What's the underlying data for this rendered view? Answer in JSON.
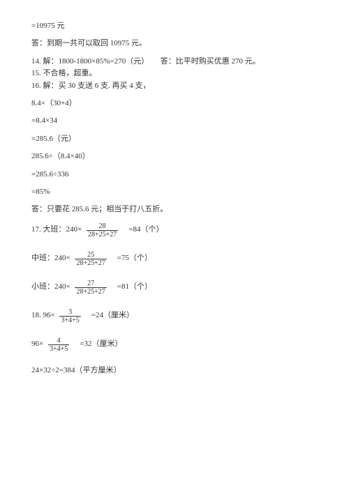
{
  "lines": {
    "l1": "=10975 元",
    "l2": "答：到期一共可以取回 10975 元。",
    "l3": "14. 解：1800-1800×85%=270（元）　　答：比平时购买优惠 270 元。",
    "l4": "15. 不合格，超重。",
    "l5": "16. 解：买 30 支送 6 支. 再买 4 支，",
    "l6": "8.4×（30+4）",
    "l7": "=8.4×34",
    "l8": "=285.6（元）",
    "l9": "285.6÷（8.4×40）",
    "l10": "=285.6÷336",
    "l11": "=85%",
    "l12": "答：只要花 285.6 元；相当于打八五折。"
  },
  "eq17a": {
    "pre": "17. 大班：240× ",
    "num": "28",
    "den": "28+25+27",
    "post": "　=84（个）"
  },
  "eq17b": {
    "pre": "中班：240× ",
    "num": "25",
    "den": "28+25+27",
    "post": "　=75（个）"
  },
  "eq17c": {
    "pre": "小班：240× ",
    "num": "27",
    "den": "28+25+27",
    "post": "　=81（个）"
  },
  "eq18a": {
    "pre": "18. 96× ",
    "num": "3",
    "den": "3+4+5",
    "post": "　=24（厘米）"
  },
  "eq18b": {
    "pre": "96× ",
    "num": "4",
    "den": "3+4+5",
    "post": "　=32（厘米）"
  },
  "l_last": "24×32÷2=384（平方厘米）"
}
